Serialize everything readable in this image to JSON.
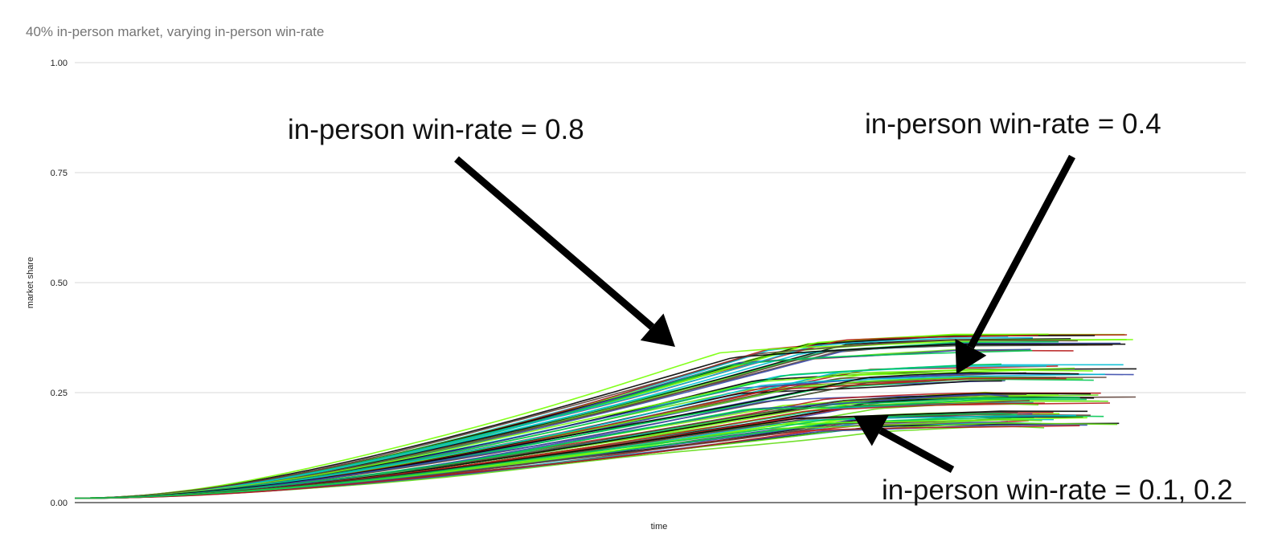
{
  "chart_data": {
    "type": "line",
    "title": "40% in-person market, varying in-person win-rate",
    "xlabel": "time",
    "ylabel": "market share",
    "ylim": [
      0,
      1
    ],
    "yticks": [
      "0.00",
      "0.25",
      "0.50",
      "0.75",
      "1.00"
    ],
    "grid": true,
    "legend": "none",
    "groups": [
      {
        "group": "0.8",
        "final": 0.355,
        "spread": 0.02,
        "count": 22
      },
      {
        "group": "0.4",
        "final": 0.285,
        "spread": 0.02,
        "count": 22
      },
      {
        "group": "0.2",
        "final": 0.225,
        "spread": 0.015,
        "count": 22
      },
      {
        "group": "0.1",
        "final": 0.18,
        "spread": 0.02,
        "count": 24
      }
    ],
    "annotations": [
      {
        "text": "in-person win-rate = 0.8",
        "points_to": {
          "y": 0.35
        }
      },
      {
        "text": "in-person win-rate = 0.4",
        "points_to": {
          "y": 0.29
        }
      },
      {
        "text": "in-person win-rate = 0.1, 0.2",
        "points_to": {
          "y": 0.2
        }
      }
    ],
    "series_colors": [
      "#b71c1c",
      "#1a237e",
      "#2e7d32",
      "#00c853",
      "#ffd600",
      "#ff6d00",
      "#00bcd4",
      "#e91e63",
      "#7b1fa2",
      "#000000",
      "#8d6e63",
      "#1e88e5",
      "#76ff03",
      "#f9a825",
      "#26a69a",
      "#5d4037",
      "#9e9e9e",
      "#ff8a80",
      "#3949ab",
      "#00e5ff",
      "#d50000",
      "#64dd17",
      "#ffab40",
      "#4dd0e1"
    ]
  }
}
